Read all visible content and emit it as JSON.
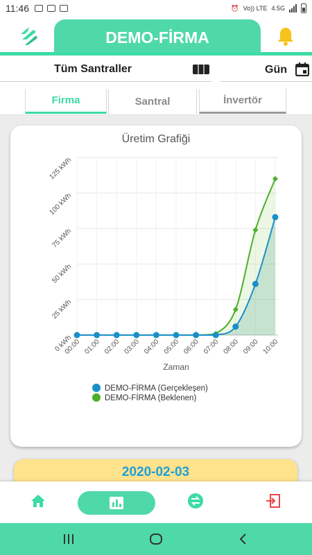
{
  "status_bar": {
    "time": "11:46",
    "network_label": "Vo)) LTE",
    "network_gen": "4.5G"
  },
  "header": {
    "title": "DEMO-FİRMA",
    "accent_color": "#4fd9a8",
    "logo_icon": "logo-icon",
    "bell_icon": "bell-icon"
  },
  "filters": {
    "plant_selector": "Tüm Santraller",
    "period_selector": "Gün"
  },
  "tabs": [
    {
      "label": "Firma",
      "active": true
    },
    {
      "label": "Santral",
      "active": false
    },
    {
      "label": "İnvertör",
      "active": false
    }
  ],
  "chart_card": {
    "chart_data": {
      "type": "line",
      "title": "Üretim Grafiği",
      "xlabel": "Zaman",
      "ylabel": "",
      "categories": [
        "00:00",
        "01:00",
        "02:00",
        "03:00",
        "04:00",
        "05:00",
        "06:00",
        "07:00",
        "08:00",
        "09:00",
        "10:00"
      ],
      "y_ticks": [
        "0 kWh",
        "25 kWh",
        "50 kWh",
        "75 kWh",
        "100 kWh",
        "125 kWh"
      ],
      "ylim": [
        0,
        125
      ],
      "grid": true,
      "legend_position": "bottom",
      "series": [
        {
          "name": "DEMO-FİRMA (Gerçekleşen)",
          "color": "#1a8fc9",
          "values": [
            0,
            0,
            0,
            0,
            0,
            0,
            0,
            0,
            6,
            36,
            83
          ]
        },
        {
          "name": "DEMO-FİRMA (Beklenen)",
          "color": "#4caf2a",
          "values": [
            0,
            0,
            0,
            0,
            0,
            0,
            0,
            1,
            18,
            74,
            110
          ]
        }
      ]
    }
  },
  "date_card": {
    "date": "2020-02-03"
  },
  "bottom_nav": {
    "items": [
      "home-icon",
      "chart-icon",
      "transfer-icon",
      "logout-icon"
    ],
    "active_index": 1
  }
}
